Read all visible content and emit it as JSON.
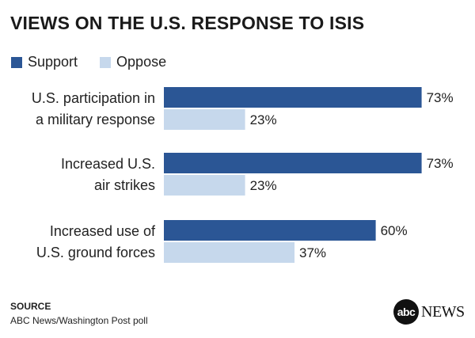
{
  "chart_data": {
    "type": "bar",
    "orientation": "horizontal",
    "title": "VIEWS ON THE U.S. RESPONSE TO ISIS",
    "categories": [
      [
        "U.S. participation in",
        "a military response"
      ],
      [
        "Increased U.S.",
        "air strikes"
      ],
      [
        "Increased use of",
        "U.S. ground forces"
      ]
    ],
    "series": [
      {
        "name": "Support",
        "values": [
          73,
          73,
          60
        ],
        "color": "#2b5695"
      },
      {
        "name": "Oppose",
        "values": [
          23,
          23,
          37
        ],
        "color": "#c6d8ec"
      }
    ],
    "value_suffix": "%",
    "xlim": [
      0,
      100
    ],
    "grid": false,
    "legend_position": "top-left"
  },
  "source": {
    "heading": "SOURCE",
    "text": "ABC News/Washington Post poll"
  },
  "logo": {
    "abc": "abc",
    "news": "NEWS"
  }
}
